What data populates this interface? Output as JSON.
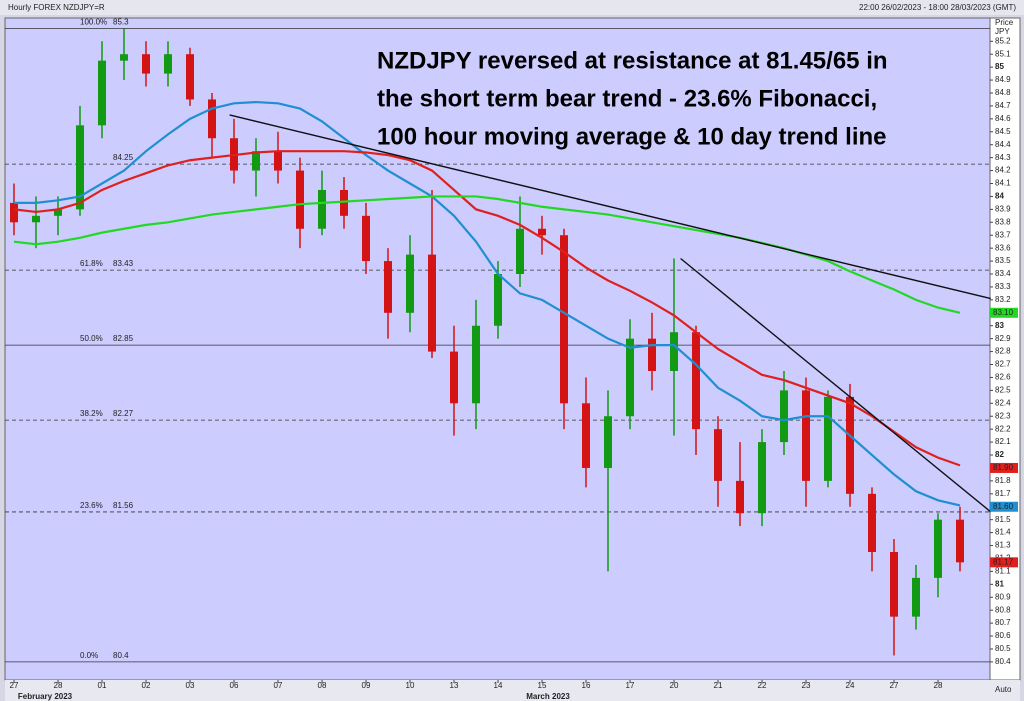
{
  "chart_data": {
    "type": "candlestick",
    "header": "Hourly FOREX NZDJPY=R",
    "range_text": "22:00 26/02/2023 - 18:00 28/03/2023 (GMT)",
    "axis_title": [
      "Price",
      "JPY"
    ],
    "auto_label": "Auto",
    "title": [
      "NZDJPY reversed at resistance at 81.45/65 in",
      "the short term bear trend - 23.6% Fibonacci,",
      "100 hour moving average & 10 day trend line"
    ],
    "month_labels": [
      "February 2023",
      "March 2023"
    ],
    "categories": [
      "27",
      null,
      "28",
      null,
      "01",
      null,
      "02",
      null,
      "03",
      null,
      "06",
      null,
      "07",
      null,
      "08",
      null,
      "09",
      null,
      "10",
      null,
      "13",
      null,
      "14",
      null,
      "15",
      null,
      "16",
      null,
      "17",
      null,
      "20",
      null,
      "21",
      null,
      "22",
      null,
      "23",
      null,
      "24",
      null,
      "27",
      null,
      "28",
      null
    ],
    "open": [
      83.95,
      83.8,
      83.85,
      83.9,
      84.55,
      85.05,
      85.1,
      84.95,
      85.1,
      84.75,
      84.45,
      84.2,
      84.35,
      84.2,
      83.75,
      84.05,
      83.85,
      83.5,
      83.1,
      83.55,
      82.8,
      82.4,
      83.0,
      83.4,
      83.75,
      83.7,
      82.4,
      81.9,
      82.3,
      82.9,
      82.65,
      82.95,
      82.2,
      81.8,
      81.55,
      82.1,
      82.5,
      81.8,
      82.45,
      81.7,
      81.25,
      80.75,
      81.05,
      81.5
    ],
    "high": [
      84.1,
      84.0,
      84.0,
      84.7,
      85.2,
      85.3,
      85.2,
      85.2,
      85.15,
      84.8,
      84.6,
      84.45,
      84.5,
      84.3,
      84.2,
      84.15,
      83.95,
      83.6,
      83.7,
      84.05,
      83.0,
      83.2,
      83.5,
      84.0,
      83.85,
      83.75,
      82.6,
      82.5,
      83.05,
      83.1,
      83.52,
      83.0,
      82.3,
      82.1,
      82.2,
      82.65,
      82.6,
      82.5,
      82.55,
      81.75,
      81.35,
      81.15,
      81.55,
      81.6
    ],
    "low": [
      83.7,
      83.6,
      83.7,
      83.85,
      84.45,
      84.9,
      84.85,
      84.85,
      84.7,
      84.3,
      84.1,
      84.0,
      84.1,
      83.6,
      83.7,
      83.75,
      83.4,
      82.9,
      82.95,
      82.75,
      82.15,
      82.2,
      82.9,
      83.3,
      83.55,
      82.2,
      81.75,
      81.1,
      82.2,
      82.5,
      82.15,
      82.0,
      81.6,
      81.45,
      81.45,
      82.0,
      81.6,
      81.75,
      81.6,
      81.1,
      80.45,
      80.65,
      80.9,
      81.1
    ],
    "close": [
      83.8,
      83.85,
      83.9,
      84.55,
      85.05,
      85.1,
      84.95,
      85.1,
      84.75,
      84.45,
      84.2,
      84.35,
      84.2,
      83.75,
      84.05,
      83.85,
      83.5,
      83.1,
      83.55,
      82.8,
      82.4,
      83.0,
      83.4,
      83.75,
      83.7,
      82.4,
      81.9,
      82.3,
      82.9,
      82.65,
      82.95,
      82.2,
      81.8,
      81.55,
      82.1,
      82.5,
      81.8,
      82.45,
      81.7,
      81.25,
      80.75,
      81.05,
      81.5,
      81.17
    ],
    "up_color": "#129a12",
    "down_color": "#d41414",
    "series": [
      {
        "color": "#1f8fd0",
        "values": [
          83.95,
          83.95,
          83.97,
          84.0,
          84.1,
          84.2,
          84.35,
          84.48,
          84.6,
          84.68,
          84.72,
          84.73,
          84.72,
          84.68,
          84.58,
          84.45,
          84.32,
          84.2,
          84.1,
          84.0,
          83.85,
          83.65,
          83.4,
          83.25,
          83.2,
          83.1,
          83.0,
          82.9,
          82.83,
          82.85,
          82.85,
          82.7,
          82.52,
          82.42,
          82.3,
          82.27,
          82.3,
          82.3,
          82.15,
          82.0,
          81.85,
          81.72,
          81.65,
          81.61
        ]
      },
      {
        "color": "#e0201e",
        "values": [
          83.9,
          83.88,
          83.9,
          83.95,
          84.05,
          84.12,
          84.18,
          84.24,
          84.28,
          84.3,
          84.32,
          84.34,
          84.35,
          84.35,
          84.35,
          84.35,
          84.34,
          84.32,
          84.28,
          84.2,
          84.05,
          83.9,
          83.85,
          83.78,
          83.68,
          83.57,
          83.45,
          83.35,
          83.27,
          83.18,
          83.08,
          82.95,
          82.82,
          82.72,
          82.62,
          82.58,
          82.52,
          82.46,
          82.4,
          82.3,
          82.18,
          82.06,
          81.98,
          81.92
        ]
      },
      {
        "color": "#22d822",
        "values": [
          83.65,
          83.63,
          83.65,
          83.68,
          83.72,
          83.75,
          83.78,
          83.8,
          83.83,
          83.86,
          83.88,
          83.9,
          83.92,
          83.94,
          83.95,
          83.96,
          83.97,
          83.98,
          83.99,
          84.0,
          84.0,
          84.0,
          83.98,
          83.95,
          83.92,
          83.9,
          83.88,
          83.86,
          83.83,
          83.8,
          83.77,
          83.74,
          83.71,
          83.68,
          83.64,
          83.6,
          83.55,
          83.5,
          83.42,
          83.35,
          83.28,
          83.2,
          83.14,
          83.1
        ]
      }
    ],
    "trend_lines": [
      {
        "x": [
          9.8,
          44.4
        ],
        "values": [
          84.63,
          83.21
        ]
      },
      {
        "x": [
          30.3,
          44.4
        ],
        "values": [
          83.52,
          81.56
        ]
      }
    ],
    "fib_levels": [
      {
        "percent": "100.0%",
        "value": 85.3,
        "dashed": false
      },
      {
        "value": 84.25,
        "dashed": true
      },
      {
        "percent": "61.8%",
        "value": 83.43,
        "dashed": true
      },
      {
        "percent": "50.0%",
        "value": 82.85,
        "dashed": false
      },
      {
        "percent": "38.2%",
        "value": 82.27,
        "dashed": true
      },
      {
        "percent": "23.6%",
        "value": 81.56,
        "dashed": true
      },
      {
        "percent": "0.0%",
        "value": 80.4,
        "dashed": false
      }
    ],
    "price_tags": [
      {
        "value": 83.1,
        "label": "83.10",
        "color": "#22d822"
      },
      {
        "value": 81.9,
        "label": "81.90",
        "color": "#e0201e"
      },
      {
        "value": 81.6,
        "label": "81.60",
        "color": "#1f8fd0"
      },
      {
        "value": 81.17,
        "label": "81.17",
        "color": "#e0201e"
      }
    ],
    "ylim": [
      80.26,
      85.38
    ],
    "yticks": [
      80.4,
      80.5,
      80.6,
      80.7,
      80.8,
      80.9,
      81,
      81.1,
      81.2,
      81.3,
      81.4,
      81.5,
      81.6,
      81.7,
      81.8,
      81.9,
      82,
      82.1,
      82.2,
      82.3,
      82.4,
      82.5,
      82.6,
      82.7,
      82.8,
      82.9,
      83,
      83.1,
      83.2,
      83.3,
      83.4,
      83.5,
      83.6,
      83.7,
      83.8,
      83.9,
      84,
      84.1,
      84.2,
      84.3,
      84.4,
      84.5,
      84.6,
      84.7,
      84.8,
      84.9,
      85,
      85.1,
      85.2
    ],
    "grid": false
  }
}
